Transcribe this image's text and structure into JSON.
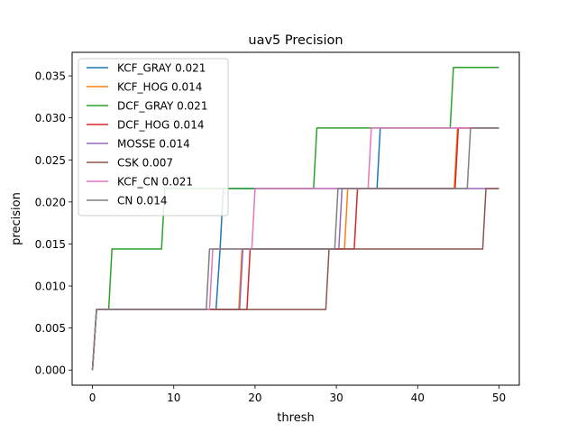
{
  "chart_data": {
    "type": "line",
    "title": "uav5 Precision",
    "xlabel": "thresh",
    "ylabel": "precision",
    "xlim": [
      -2.5,
      52.5
    ],
    "ylim": [
      -0.0018,
      0.0378
    ],
    "xticks": [
      0,
      10,
      20,
      30,
      40,
      50
    ],
    "xtick_labels": [
      "0",
      "10",
      "20",
      "30",
      "40",
      "50"
    ],
    "yticks": [
      0,
      0.005,
      0.01,
      0.015,
      0.02,
      0.025,
      0.03,
      0.035
    ],
    "ytick_labels": [
      "0.000",
      "0.005",
      "0.010",
      "0.015",
      "0.020",
      "0.025",
      "0.030",
      "0.035"
    ],
    "grid": false,
    "legend_position": "top-left",
    "series": [
      {
        "name": "KCF_GRAY 0.021",
        "color": "#1f77b4",
        "points": [
          [
            0,
            0
          ],
          [
            0.5,
            0.0072
          ],
          [
            15.2,
            0.0072
          ],
          [
            15.7,
            0.0144
          ],
          [
            15.7,
            0.0144
          ],
          [
            16.1,
            0.0216
          ],
          [
            35,
            0.0216
          ],
          [
            35.4,
            0.0288
          ],
          [
            50,
            0.0288
          ]
        ]
      },
      {
        "name": "KCF_HOG 0.014",
        "color": "#ff7f0e",
        "points": [
          [
            0,
            0
          ],
          [
            0.5,
            0.0072
          ],
          [
            18,
            0.0072
          ],
          [
            18.4,
            0.0144
          ],
          [
            31,
            0.0144
          ],
          [
            31.4,
            0.0216
          ],
          [
            44.5,
            0.0216
          ],
          [
            44.9,
            0.0288
          ],
          [
            50,
            0.0288
          ]
        ]
      },
      {
        "name": "DCF_GRAY 0.021",
        "color": "#2ca02c",
        "points": [
          [
            0,
            0
          ],
          [
            0.5,
            0.0072
          ],
          [
            2,
            0.0072
          ],
          [
            2.4,
            0.0144
          ],
          [
            8.5,
            0.0144
          ],
          [
            8.9,
            0.0216
          ],
          [
            27.2,
            0.0216
          ],
          [
            27.6,
            0.0288
          ],
          [
            44,
            0.0288
          ],
          [
            44.4,
            0.036
          ],
          [
            50,
            0.036
          ]
        ]
      },
      {
        "name": "DCF_HOG 0.014",
        "color": "#d62728",
        "points": [
          [
            0,
            0
          ],
          [
            0.5,
            0.0072
          ],
          [
            19,
            0.0072
          ],
          [
            19.4,
            0.0144
          ],
          [
            32.2,
            0.0144
          ],
          [
            32.6,
            0.0216
          ],
          [
            44.6,
            0.0216
          ],
          [
            45,
            0.0288
          ],
          [
            50,
            0.0288
          ]
        ]
      },
      {
        "name": "MOSSE 0.014",
        "color": "#9467bd",
        "points": [
          [
            0,
            0
          ],
          [
            0.5,
            0.0072
          ],
          [
            18.1,
            0.0072
          ],
          [
            18.5,
            0.0144
          ],
          [
            30.3,
            0.0144
          ],
          [
            30.7,
            0.0216
          ],
          [
            50,
            0.0216
          ]
        ]
      },
      {
        "name": "CSK 0.007",
        "color": "#8c564b",
        "points": [
          [
            0,
            0
          ],
          [
            0.5,
            0.0072
          ],
          [
            28.7,
            0.0072
          ],
          [
            29.1,
            0.0144
          ],
          [
            48,
            0.0144
          ],
          [
            48.4,
            0.0216
          ],
          [
            50,
            0.0216
          ]
        ]
      },
      {
        "name": "KCF_CN 0.021",
        "color": "#e377c2",
        "points": [
          [
            0,
            0
          ],
          [
            0.5,
            0.0072
          ],
          [
            14.4,
            0.0072
          ],
          [
            14.8,
            0.0144
          ],
          [
            19.6,
            0.0144
          ],
          [
            20,
            0.0216
          ],
          [
            33.9,
            0.0216
          ],
          [
            34.3,
            0.0288
          ],
          [
            50,
            0.0288
          ]
        ]
      },
      {
        "name": "CN 0.014",
        "color": "#7f7f7f",
        "points": [
          [
            0,
            0
          ],
          [
            0.5,
            0.0072
          ],
          [
            14,
            0.0072
          ],
          [
            14.4,
            0.0144
          ],
          [
            29.8,
            0.0144
          ],
          [
            30.2,
            0.0216
          ],
          [
            46.1,
            0.0216
          ],
          [
            46.5,
            0.0288
          ],
          [
            50,
            0.0288
          ]
        ]
      }
    ]
  }
}
